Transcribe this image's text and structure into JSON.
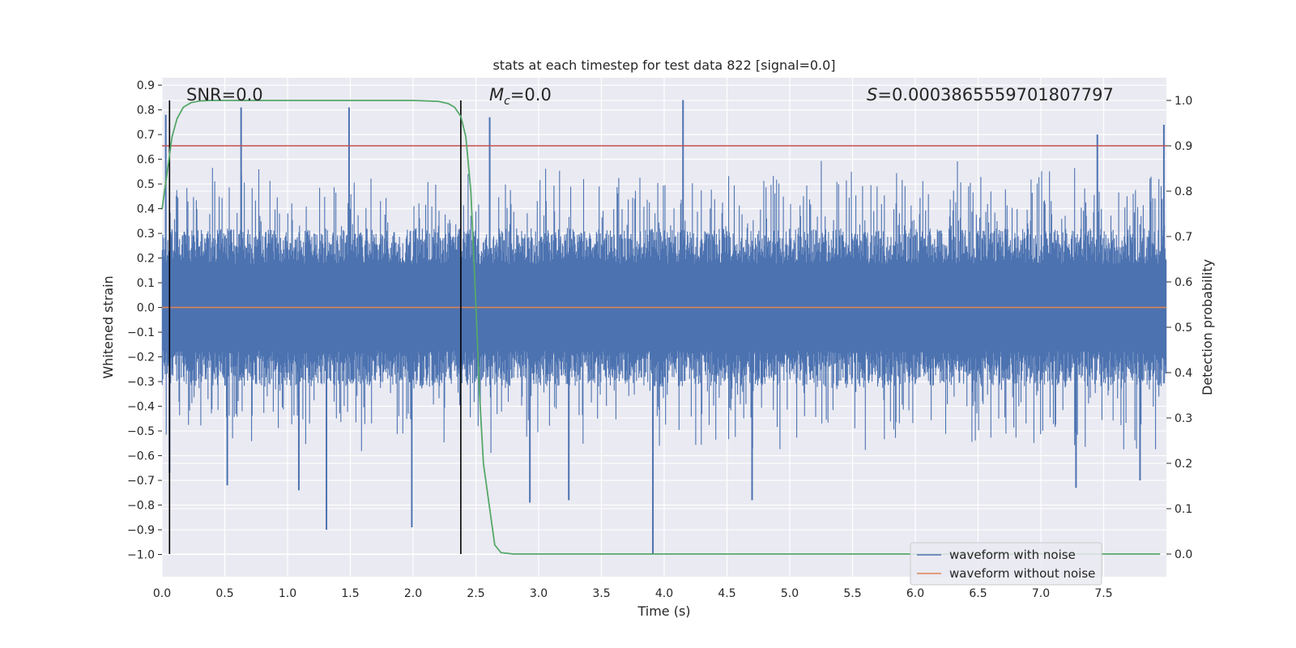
{
  "chart_data": {
    "type": "line",
    "title": "stats at each timestep for test data 822 [signal=0.0]",
    "xlabel": "Time (s)",
    "ylabel_left": "Whitened strain",
    "ylabel_right": "Detection probability",
    "xlim": [
      0.0,
      8.0
    ],
    "ylim_left": [
      -1.09,
      0.93
    ],
    "ylim_right": [
      -0.05,
      1.05
    ],
    "x_ticks": [
      "0.0",
      "0.5",
      "1.0",
      "1.5",
      "2.0",
      "2.5",
      "3.0",
      "3.5",
      "4.0",
      "4.5",
      "5.0",
      "5.5",
      "6.0",
      "6.5",
      "7.0",
      "7.5"
    ],
    "y_left_ticks": [
      "0.9",
      "0.8",
      "0.7",
      "0.6",
      "0.5",
      "0.4",
      "0.3",
      "0.2",
      "0.1",
      "0.0",
      "−0.1",
      "−0.2",
      "−0.3",
      "−0.4",
      "−0.5",
      "−0.6",
      "−0.7",
      "−0.8",
      "−0.9",
      "−1.0"
    ],
    "y_right_ticks": [
      "1.0",
      "0.9",
      "0.8",
      "0.7",
      "0.6",
      "0.5",
      "0.4",
      "0.3",
      "0.2",
      "0.1",
      "0.0"
    ],
    "grid": true,
    "legend_position": "lower-right",
    "annotations": {
      "snr": "SNR=0.0",
      "mc_prefix": "M",
      "mc_sub": "c",
      "mc_value": "=0.0",
      "s_prefix": "S",
      "s_value": "=0.0003865559701807797"
    },
    "threshold": 0.9,
    "markers_x": [
      0.06,
      2.38
    ],
    "series": [
      {
        "name": "waveform with noise",
        "color": "#4c72b0",
        "axis": "left",
        "noise_envelope": 0.32,
        "peaks": [
          {
            "x": 0.03,
            "y": 0.78
          },
          {
            "x": 0.63,
            "y": 0.81
          },
          {
            "x": 1.49,
            "y": 0.81
          },
          {
            "x": 2.61,
            "y": 0.77
          },
          {
            "x": 4.15,
            "y": 0.84
          },
          {
            "x": 7.45,
            "y": 0.7
          },
          {
            "x": 7.98,
            "y": 0.74
          },
          {
            "x": 1.31,
            "y": -0.9
          },
          {
            "x": 1.99,
            "y": -0.89
          },
          {
            "x": 3.91,
            "y": -1.0
          },
          {
            "x": 2.93,
            "y": -0.79
          },
          {
            "x": 3.24,
            "y": -0.78
          },
          {
            "x": 4.7,
            "y": -0.78
          },
          {
            "x": 7.28,
            "y": -0.73
          },
          {
            "x": 1.09,
            "y": -0.74
          },
          {
            "x": 0.52,
            "y": -0.72
          },
          {
            "x": 0.06,
            "y": -0.67
          },
          {
            "x": 7.79,
            "y": -0.7
          }
        ]
      },
      {
        "name": "waveform without noise",
        "color": "#dd8452",
        "axis": "left",
        "x": [
          0.0,
          8.0
        ],
        "y": [
          0.0,
          0.0
        ]
      },
      {
        "name": "detection probability",
        "color": "#55a868",
        "axis": "right",
        "x": [
          0.0,
          0.02,
          0.05,
          0.08,
          0.12,
          0.17,
          0.23,
          0.3,
          0.38,
          0.5,
          0.7,
          1.0,
          1.5,
          2.0,
          2.2,
          2.28,
          2.33,
          2.38,
          2.42,
          2.46,
          2.5,
          2.53,
          2.56,
          2.6,
          2.65,
          2.7,
          2.8,
          3.0,
          4.0,
          5.0,
          6.0,
          7.0,
          7.95
        ],
        "y": [
          0.76,
          0.8,
          0.86,
          0.92,
          0.96,
          0.985,
          0.995,
          0.999,
          1.0,
          1.0,
          1.0,
          1.0,
          1.0,
          1.0,
          0.998,
          0.993,
          0.985,
          0.965,
          0.92,
          0.8,
          0.55,
          0.35,
          0.2,
          0.12,
          0.02,
          0.003,
          0.0,
          0.0,
          0.0,
          0.0,
          0.0,
          0.0,
          0.0
        ]
      }
    ]
  }
}
